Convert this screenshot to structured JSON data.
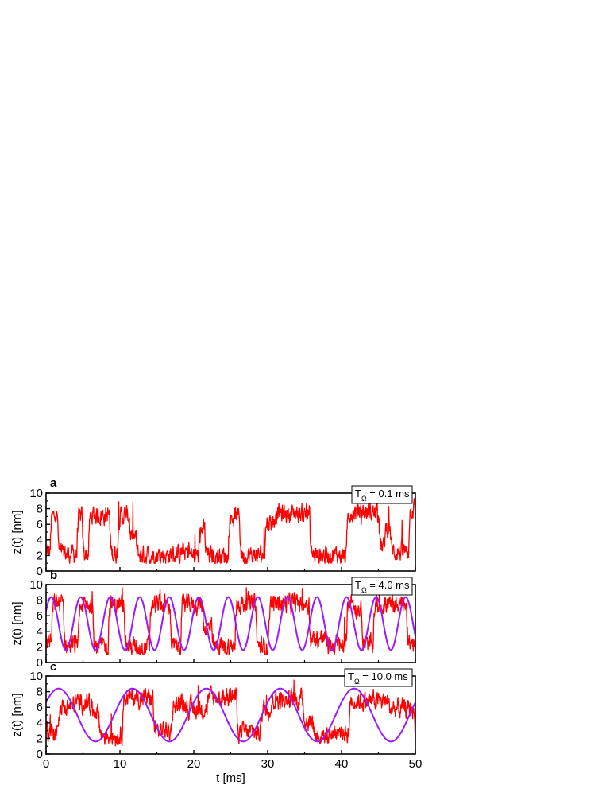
{
  "chart_data": [
    {
      "panel": "a",
      "type": "line",
      "legend_label": {
        "base": "T",
        "sub": "Ω",
        "rest": " = 0.1 ms"
      },
      "legend_position": "top-right",
      "xlim": [
        0,
        50
      ],
      "ylim": [
        0,
        10
      ],
      "yticks": [
        "0",
        "2",
        "4",
        "6",
        "8",
        "10"
      ],
      "ylabel": "z(t) [nm]",
      "trace_color": "#ff0000",
      "sine_color": null,
      "sine": null,
      "trace_segments": [
        [
          0,
          0.6,
          2.5
        ],
        [
          0.6,
          1.6,
          7.0
        ],
        [
          1.6,
          4.2,
          2.2
        ],
        [
          4.2,
          4.9,
          6.8
        ],
        [
          4.9,
          5.8,
          2.2
        ],
        [
          5.8,
          8.6,
          7.2
        ],
        [
          8.6,
          9.7,
          2.3
        ],
        [
          9.7,
          11.3,
          7.1
        ],
        [
          11.3,
          12.2,
          4.2
        ],
        [
          12.2,
          18.1,
          2.1
        ],
        [
          18.1,
          19.4,
          2.4
        ],
        [
          19.4,
          20.7,
          2.0
        ],
        [
          20.7,
          21.5,
          5.3
        ],
        [
          21.5,
          24.7,
          2.0
        ],
        [
          24.7,
          26.2,
          7.1
        ],
        [
          26.2,
          28.8,
          2.0
        ],
        [
          28.8,
          29.6,
          2.2
        ],
        [
          29.6,
          30.9,
          6.3
        ],
        [
          30.9,
          35.7,
          7.4
        ],
        [
          35.7,
          39.7,
          2.1
        ],
        [
          39.7,
          40.7,
          2.0
        ],
        [
          40.7,
          45.1,
          7.6
        ],
        [
          45.1,
          45.8,
          3.0
        ],
        [
          45.8,
          46.6,
          5.6
        ],
        [
          46.6,
          49.1,
          2.5
        ],
        [
          49.1,
          50,
          8.0
        ]
      ]
    },
    {
      "panel": "b",
      "type": "line",
      "legend_label": {
        "base": "T",
        "sub": "Ω",
        "rest": " = 4.0 ms"
      },
      "legend_position": "top-right",
      "xlim": [
        0,
        50
      ],
      "ylim": [
        0,
        10
      ],
      "yticks": [
        "0",
        "2",
        "4",
        "6",
        "8",
        "10"
      ],
      "ylabel": "z(t) [nm]",
      "trace_color": "#ff0000",
      "sine_color": "#9b1aff",
      "sine": {
        "period_ms": 4.0,
        "mean_nm": 5.0,
        "amplitude_nm": 3.4,
        "phase_rad": 0.5
      },
      "trace_segments": [
        [
          0,
          0.8,
          2.8
        ],
        [
          0.8,
          2.4,
          7.6
        ],
        [
          2.4,
          4.4,
          2.2
        ],
        [
          4.4,
          6.4,
          7.4
        ],
        [
          6.4,
          8.4,
          2.0
        ],
        [
          8.4,
          10.6,
          7.4
        ],
        [
          10.6,
          14.0,
          2.0
        ],
        [
          14.0,
          16.8,
          7.4
        ],
        [
          16.8,
          18.2,
          2.0
        ],
        [
          18.2,
          21.2,
          7.4
        ],
        [
          21.2,
          22.4,
          4.4
        ],
        [
          22.4,
          25.6,
          2.0
        ],
        [
          25.6,
          28.4,
          7.6
        ],
        [
          28.4,
          30.1,
          2.0
        ],
        [
          30.1,
          35.6,
          7.6
        ],
        [
          35.6,
          38.0,
          3.0
        ],
        [
          38.0,
          40.7,
          2.2
        ],
        [
          40.7,
          41.5,
          8.0
        ],
        [
          41.5,
          42.7,
          7.0
        ],
        [
          42.7,
          44.3,
          2.2
        ],
        [
          44.3,
          48.8,
          7.4
        ],
        [
          48.8,
          50,
          2.6
        ]
      ]
    },
    {
      "panel": "c",
      "type": "line",
      "legend_label": {
        "base": "T",
        "sub": "Ω",
        "rest": " = 10.0 ms"
      },
      "legend_position": "top-right",
      "xlim": [
        0,
        50
      ],
      "ylim": [
        0,
        10
      ],
      "yticks": [
        "0",
        "2",
        "4",
        "6",
        "8",
        "10"
      ],
      "xticks": [
        "0",
        "10",
        "20",
        "30",
        "40",
        "50"
      ],
      "xlabel": "t [ms]",
      "ylabel": "z(t) [nm]",
      "trace_color": "#ff0000",
      "sine_color": "#9b1aff",
      "sine": {
        "period_ms": 10.0,
        "mean_nm": 5.0,
        "amplitude_nm": 3.4,
        "phase_rad": 0.5
      },
      "trace_segments": [
        [
          0,
          1.6,
          2.8
        ],
        [
          1.6,
          3.6,
          6.0
        ],
        [
          3.6,
          6.0,
          6.6
        ],
        [
          6.0,
          7.2,
          5.6
        ],
        [
          7.2,
          10.3,
          2.4
        ],
        [
          10.3,
          14.5,
          7.2
        ],
        [
          14.5,
          17.0,
          3.0
        ],
        [
          17.0,
          19.0,
          6.4
        ],
        [
          19.0,
          21.8,
          5.8
        ],
        [
          21.8,
          25.8,
          7.3
        ],
        [
          25.8,
          29.0,
          2.8
        ],
        [
          29.0,
          30.5,
          5.8
        ],
        [
          30.5,
          34.8,
          7.0
        ],
        [
          34.8,
          36.2,
          4.2
        ],
        [
          36.2,
          38.5,
          2.4
        ],
        [
          38.5,
          41.0,
          2.8
        ],
        [
          41.0,
          46.3,
          6.8
        ],
        [
          46.3,
          49.8,
          5.8
        ],
        [
          49.8,
          50,
          2.6
        ]
      ]
    }
  ]
}
